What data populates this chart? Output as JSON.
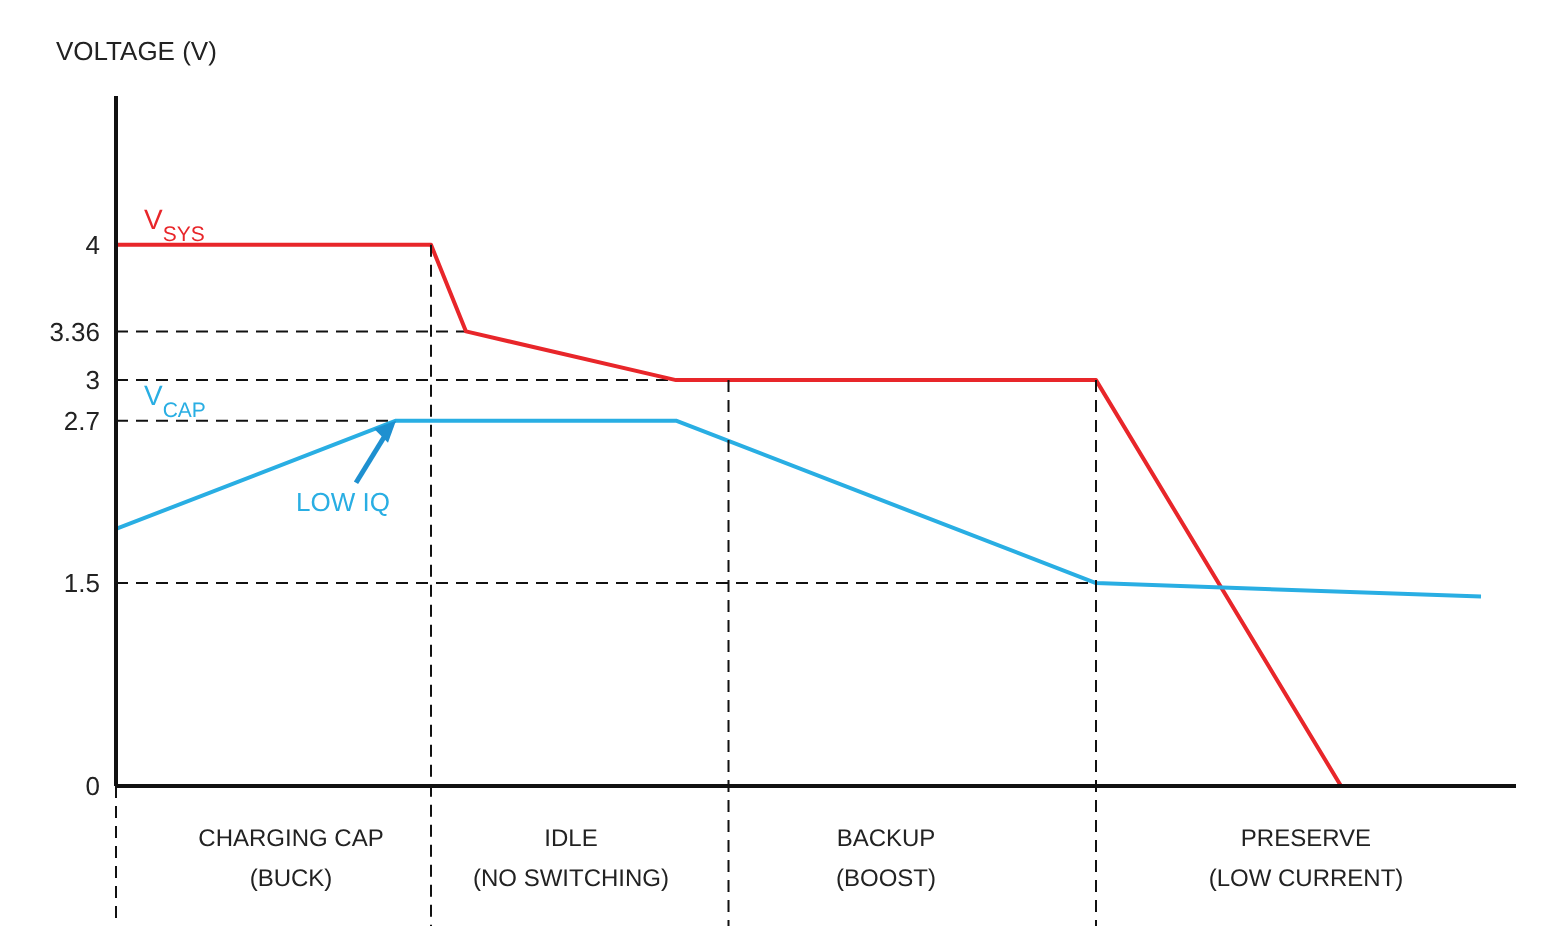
{
  "chart_data": {
    "type": "line",
    "ylabel": "VOLTAGE (V)",
    "ylim": [
      0,
      5.1
    ],
    "yticks": [
      0,
      1.5,
      2.7,
      3,
      3.36,
      4
    ],
    "marker": "none",
    "line_style": "solid",
    "categories": [
      null,
      null,
      null,
      null,
      null,
      "CHARGING CAP\n(BUCK)",
      null,
      null,
      null,
      null,
      null,
      null,
      null,
      "IDLE\n(NO SWITCHING)",
      null,
      null,
      null,
      null,
      null,
      null,
      null,
      null,
      "BACKUP\n(BOOST)",
      null,
      null,
      null,
      null,
      null,
      null,
      null,
      null,
      null,
      null,
      null,
      "PRESERVE\n(LOW CURRENT)",
      null,
      null,
      null,
      null,
      null,
      null
    ],
    "series": [
      {
        "name": "V$_{SYS}$",
        "color": "#e8262a",
        "values": [
          4,
          null,
          null,
          null,
          null,
          null,
          null,
          null,
          null,
          4,
          3.36,
          null,
          null,
          null,
          null,
          null,
          3,
          null,
          null,
          null,
          null,
          null,
          null,
          null,
          null,
          null,
          null,
          null,
          3,
          null,
          null,
          null,
          null,
          null,
          null,
          0,
          null,
          null,
          null,
          null,
          null
        ]
      },
      {
        "name": "V$_{CAP}$",
        "color": "#29aee3",
        "values": [
          1.9,
          null,
          null,
          null,
          null,
          null,
          null,
          null,
          2.7,
          null,
          null,
          null,
          null,
          null,
          null,
          null,
          2.7,
          null,
          null,
          null,
          null,
          null,
          null,
          null,
          null,
          null,
          null,
          null,
          1.5,
          null,
          null,
          null,
          null,
          null,
          null,
          null,
          null,
          null,
          null,
          1.4,
          null
        ]
      }
    ],
    "ref_lines": [
      {
        "axis": "y",
        "value": 3.36,
        "line_style": "dashed"
      },
      {
        "axis": "y",
        "value": 3,
        "line_style": "dashed"
      },
      {
        "axis": "y",
        "value": 2.7,
        "line_style": "dashed"
      },
      {
        "axis": "y",
        "value": 1.5,
        "line_style": "dashed"
      }
    ],
    "annotations": [
      {
        "text": "LOW IQ",
        "y": 2.7
      }
    ]
  }
}
